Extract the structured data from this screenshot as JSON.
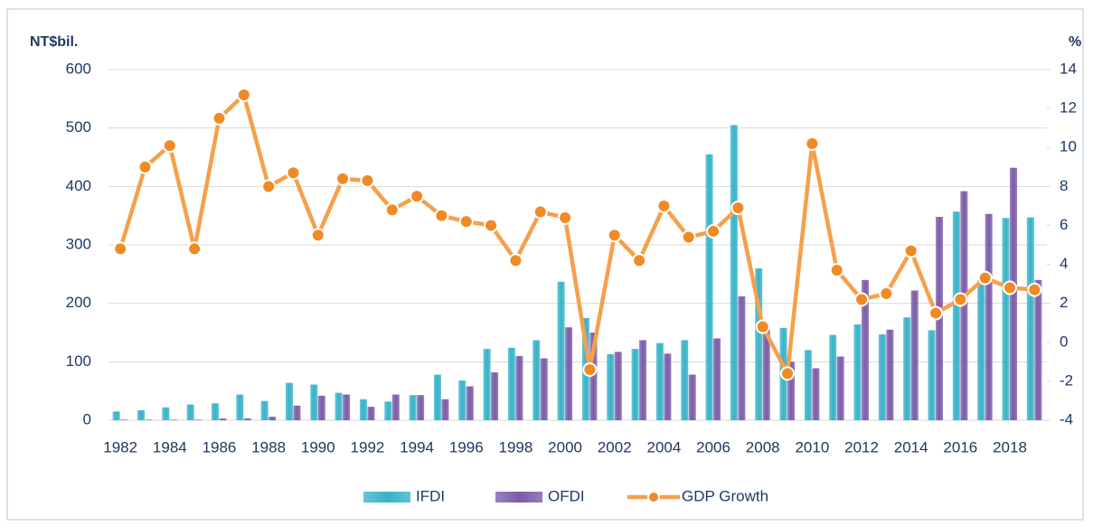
{
  "chart_data": {
    "type": "bar",
    "y_label": "NT$bil.",
    "y2_label": "%",
    "categories": [
      "1982",
      null,
      "1984",
      null,
      "1986",
      null,
      "1988",
      null,
      "1990",
      null,
      "1992",
      null,
      "1994",
      null,
      "1996",
      null,
      "1998",
      null,
      "2000",
      null,
      "2002",
      null,
      "2004",
      null,
      "2006",
      null,
      "2008",
      null,
      "2010",
      null,
      "2012",
      null,
      "2014",
      null,
      "2016",
      null,
      "2018",
      null
    ],
    "series": [
      {
        "name": "IFDI",
        "color": "#36b3c8",
        "values": [
          15,
          17,
          22,
          27,
          29,
          44,
          33,
          64,
          61,
          47,
          36,
          32,
          43,
          78,
          68,
          122,
          124,
          137,
          237,
          175,
          113,
          122,
          132,
          137,
          455,
          505,
          260,
          158,
          120,
          146,
          164,
          147,
          176,
          154,
          357,
          240,
          346,
          347
        ]
      },
      {
        "name": "OFDI",
        "color": "#7b5ba8",
        "values": [
          1,
          1,
          1,
          1,
          3,
          3,
          6,
          25,
          42,
          44,
          23,
          44,
          43,
          36,
          58,
          82,
          110,
          106,
          159,
          150,
          117,
          137,
          114,
          78,
          140,
          212,
          160,
          100,
          89,
          109,
          240,
          155,
          222,
          348,
          392,
          353,
          432,
          240
        ]
      },
      {
        "name": "GDP Growth",
        "type": "line",
        "axis": "y2",
        "color": "#f5a04c",
        "values": [
          4.8,
          9.0,
          10.1,
          4.8,
          11.5,
          12.7,
          8.0,
          8.7,
          5.5,
          8.4,
          8.3,
          6.8,
          7.5,
          6.5,
          6.2,
          6.0,
          4.2,
          6.7,
          6.4,
          -1.4,
          5.5,
          4.2,
          7.0,
          5.4,
          5.7,
          6.9,
          0.8,
          -1.6,
          10.2,
          3.7,
          2.2,
          2.5,
          4.7,
          1.5,
          2.2,
          3.3,
          2.8,
          2.7
        ]
      }
    ],
    "ylim": [
      0,
      600
    ],
    "yticks": [
      0,
      100,
      200,
      300,
      400,
      500,
      600
    ],
    "y2lim": [
      -4,
      14
    ],
    "y2ticks": [
      -4,
      -2,
      0,
      2,
      4,
      6,
      8,
      10,
      12,
      14
    ],
    "grid": true,
    "legend": "bottom"
  }
}
